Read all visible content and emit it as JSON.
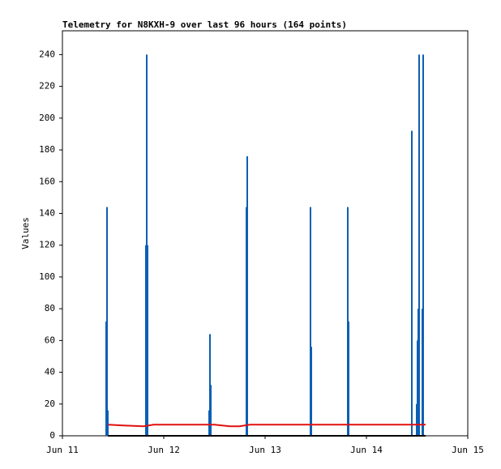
{
  "chart_data": {
    "type": "line",
    "title": "Telemetry for N8KXH-9 over last 96 hours (164 points)",
    "y_label": "Values",
    "xlim": [
      11,
      15
    ],
    "xticks": [
      {
        "value": 11,
        "label": "Jun 11"
      },
      {
        "value": 12,
        "label": "Jun 12"
      },
      {
        "value": 13,
        "label": "Jun 13"
      },
      {
        "value": 14,
        "label": "Jun 14"
      },
      {
        "value": 15,
        "label": "Jun 15"
      }
    ],
    "ylim": [
      0,
      255
    ],
    "yticks": [
      0,
      20,
      40,
      60,
      80,
      100,
      120,
      140,
      160,
      180,
      200,
      220,
      240
    ],
    "series": [
      {
        "style": "impulse",
        "color": "#0a5fb4",
        "x": [
          11.432,
          11.44,
          11.448,
          11.824,
          11.832,
          11.84,
          12.448,
          12.456,
          12.464,
          12.816,
          12.824,
          13.448,
          13.456,
          13.816,
          13.824,
          14.448,
          14.496,
          14.504,
          14.512,
          14.52,
          14.552,
          14.56
        ],
        "values": [
          72,
          144,
          16,
          120,
          240,
          120,
          16,
          64,
          32,
          144,
          176,
          144,
          56,
          144,
          72,
          192,
          20,
          60,
          80,
          240,
          80,
          240
        ]
      },
      {
        "style": "line",
        "color": "#e01010",
        "x": [
          11.45,
          11.6,
          11.8,
          11.9,
          12.5,
          12.65,
          12.75,
          12.85,
          14.584
        ],
        "values": [
          7,
          6.5,
          6,
          7,
          7,
          6,
          6,
          7,
          7
        ]
      },
      {
        "style": "line",
        "color": "#000000",
        "x": [
          11.45,
          14.584
        ],
        "values": [
          0,
          0
        ]
      }
    ]
  }
}
